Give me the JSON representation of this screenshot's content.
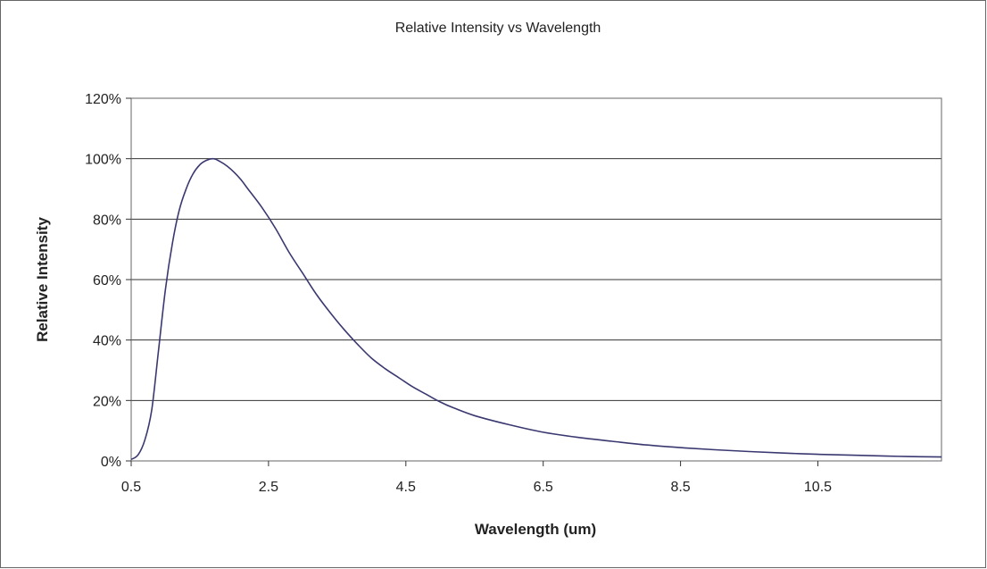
{
  "chart_data": {
    "type": "line",
    "title": "Relative Intensity vs Wavelength",
    "xlabel": "Wavelength (um)",
    "ylabel": "Relative Intensity",
    "xlim": [
      0.5,
      12.3
    ],
    "ylim": [
      0,
      120
    ],
    "x_ticks": [
      0.5,
      2.5,
      4.5,
      6.5,
      8.5,
      10.5
    ],
    "x_tick_labels": [
      "0.5",
      "2.5",
      "4.5",
      "6.5",
      "8.5",
      "10.5"
    ],
    "y_ticks": [
      0,
      20,
      40,
      60,
      80,
      100,
      120
    ],
    "y_tick_labels": [
      "0%",
      "20%",
      "40%",
      "60%",
      "80%",
      "100%",
      "120%"
    ],
    "grid": "horizontal",
    "legend": "none",
    "colors": {
      "series": "#3a3870",
      "grid": "#333333",
      "frame": "#666666"
    },
    "series": [
      {
        "x": [
          0.5,
          0.6,
          0.7,
          0.8,
          0.9,
          1.0,
          1.1,
          1.2,
          1.3,
          1.4,
          1.5,
          1.6,
          1.7,
          1.8,
          1.9,
          2.0,
          2.1,
          2.2,
          2.4,
          2.6,
          2.8,
          3.0,
          3.2,
          3.4,
          3.6,
          3.8,
          4.0,
          4.2,
          4.4,
          4.6,
          4.8,
          5.0,
          5.2,
          5.5,
          6.0,
          6.5,
          7.0,
          7.5,
          8.0,
          8.5,
          9.0,
          9.5,
          10.0,
          10.5,
          11.0,
          11.5,
          12.0,
          12.3
        ],
        "values": [
          0.5,
          2,
          7,
          17,
          37,
          57,
          72,
          83,
          90,
          95,
          98,
          99.5,
          100,
          99,
          97.5,
          95.5,
          93,
          90,
          84,
          77,
          69,
          62,
          55,
          49,
          43.5,
          38.5,
          34,
          30.5,
          27.5,
          24.5,
          22,
          19.5,
          17.5,
          15,
          12,
          9.5,
          7.8,
          6.5,
          5.3,
          4.4,
          3.7,
          3.1,
          2.6,
          2.2,
          1.9,
          1.6,
          1.4,
          1.3
        ]
      }
    ]
  }
}
